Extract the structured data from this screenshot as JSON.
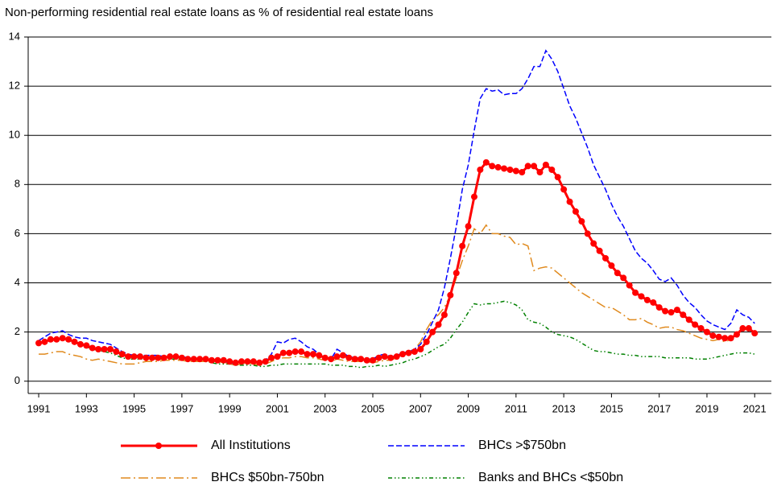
{
  "chart_data": {
    "type": "line",
    "title": "Non-performing residential real estate loans as % of residential real estate loans",
    "x": [
      1991,
      1991.25,
      1991.5,
      1991.75,
      1992,
      1992.25,
      1992.5,
      1992.75,
      1993,
      1993.25,
      1993.5,
      1993.75,
      1994,
      1994.25,
      1994.5,
      1994.75,
      1995,
      1995.25,
      1995.5,
      1995.75,
      1996,
      1996.25,
      1996.5,
      1996.75,
      1997,
      1997.25,
      1997.5,
      1997.75,
      1998,
      1998.25,
      1998.5,
      1998.75,
      1999,
      1999.25,
      1999.5,
      1999.75,
      2000,
      2000.25,
      2000.5,
      2000.75,
      2001,
      2001.25,
      2001.5,
      2001.75,
      2002,
      2002.25,
      2002.5,
      2002.75,
      2003,
      2003.25,
      2003.5,
      2003.75,
      2004,
      2004.25,
      2004.5,
      2004.75,
      2005,
      2005.25,
      2005.5,
      2005.75,
      2006,
      2006.25,
      2006.5,
      2006.75,
      2007,
      2007.25,
      2007.5,
      2007.75,
      2008,
      2008.25,
      2008.5,
      2008.75,
      2009,
      2009.25,
      2009.5,
      2009.75,
      2010,
      2010.25,
      2010.5,
      2010.75,
      2011,
      2011.25,
      2011.5,
      2011.75,
      2012,
      2012.25,
      2012.5,
      2012.75,
      2013,
      2013.25,
      2013.5,
      2013.75,
      2014,
      2014.25,
      2014.5,
      2014.75,
      2015,
      2015.25,
      2015.5,
      2015.75,
      2016,
      2016.25,
      2016.5,
      2016.75,
      2017,
      2017.25,
      2017.5,
      2017.75,
      2018,
      2018.25,
      2018.5,
      2018.75,
      2019,
      2019.25,
      2019.5,
      2019.75,
      2020,
      2020.25,
      2020.5,
      2020.75,
      2021
    ],
    "series": [
      {
        "name": "All Institutions",
        "color": "#ff0000",
        "style": "solid",
        "marker": "o",
        "values": [
          1.55,
          1.6,
          1.7,
          1.7,
          1.75,
          1.7,
          1.6,
          1.5,
          1.45,
          1.35,
          1.3,
          1.3,
          1.3,
          1.2,
          1.1,
          1.0,
          1.0,
          1.0,
          0.95,
          0.95,
          0.95,
          0.95,
          1.0,
          1.0,
          0.95,
          0.9,
          0.9,
          0.9,
          0.9,
          0.85,
          0.85,
          0.85,
          0.8,
          0.75,
          0.8,
          0.8,
          0.8,
          0.75,
          0.8,
          0.95,
          1.0,
          1.15,
          1.15,
          1.2,
          1.2,
          1.1,
          1.1,
          1.05,
          0.95,
          0.9,
          1.0,
          1.05,
          0.95,
          0.9,
          0.9,
          0.85,
          0.85,
          0.95,
          1.0,
          0.95,
          1.0,
          1.1,
          1.15,
          1.2,
          1.3,
          1.6,
          2.0,
          2.3,
          2.7,
          3.5,
          4.4,
          5.5,
          6.3,
          7.5,
          8.6,
          8.9,
          8.75,
          8.7,
          8.65,
          8.6,
          8.55,
          8.5,
          8.75,
          8.75,
          8.5,
          8.8,
          8.6,
          8.3,
          7.8,
          7.3,
          6.9,
          6.5,
          6.0,
          5.6,
          5.3,
          5.0,
          4.7,
          4.4,
          4.2,
          3.9,
          3.6,
          3.45,
          3.3,
          3.2,
          3.0,
          2.85,
          2.8,
          2.9,
          2.7,
          2.5,
          2.3,
          2.15,
          2.0,
          1.85,
          1.8,
          1.75,
          1.75,
          1.9,
          2.15,
          2.15,
          1.95
        ]
      },
      {
        "name": "BHCs >$750bn",
        "color": "#0000ff",
        "style": "dashed",
        "values": [
          1.65,
          1.8,
          1.95,
          2.0,
          2.05,
          1.9,
          1.8,
          1.75,
          1.75,
          1.65,
          1.6,
          1.55,
          1.5,
          1.35,
          1.2,
          1.1,
          1.05,
          1.05,
          1.05,
          1.05,
          1.05,
          1.0,
          1.05,
          1.0,
          1.0,
          0.95,
          0.95,
          0.9,
          0.9,
          0.85,
          0.85,
          0.8,
          0.75,
          0.7,
          0.8,
          0.8,
          0.8,
          0.75,
          0.85,
          1.1,
          1.6,
          1.55,
          1.7,
          1.75,
          1.6,
          1.4,
          1.3,
          1.1,
          0.95,
          0.9,
          1.3,
          1.15,
          1.0,
          0.95,
          0.95,
          0.9,
          0.9,
          1.05,
          1.1,
          1.0,
          1.05,
          1.15,
          1.2,
          1.3,
          1.5,
          1.9,
          2.4,
          2.9,
          3.8,
          5.0,
          6.3,
          7.8,
          8.8,
          10.2,
          11.5,
          11.9,
          11.8,
          11.85,
          11.65,
          11.7,
          11.7,
          11.9,
          12.3,
          12.8,
          12.8,
          13.45,
          13.1,
          12.6,
          11.9,
          11.2,
          10.7,
          10.1,
          9.5,
          8.8,
          8.3,
          7.8,
          7.2,
          6.7,
          6.3,
          5.8,
          5.3,
          5.0,
          4.8,
          4.5,
          4.15,
          4.05,
          4.2,
          3.9,
          3.5,
          3.2,
          3.0,
          2.7,
          2.45,
          2.3,
          2.2,
          2.1,
          2.35,
          2.9,
          2.7,
          2.6,
          2.35
        ]
      },
      {
        "name": "BHCs $50bn-750bn",
        "color": "#e08a1e",
        "style": "dashdot",
        "values": [
          1.1,
          1.1,
          1.15,
          1.2,
          1.2,
          1.1,
          1.05,
          1.0,
          0.9,
          0.85,
          0.9,
          0.85,
          0.8,
          0.75,
          0.7,
          0.7,
          0.7,
          0.75,
          0.8,
          0.8,
          0.8,
          0.85,
          0.85,
          0.85,
          0.85,
          0.8,
          0.8,
          0.8,
          0.8,
          0.8,
          0.8,
          0.75,
          0.7,
          0.65,
          0.7,
          0.75,
          0.7,
          0.65,
          0.7,
          0.8,
          0.9,
          0.95,
          0.95,
          1.0,
          1.0,
          0.95,
          0.95,
          0.9,
          0.85,
          0.8,
          0.9,
          0.85,
          0.8,
          0.8,
          0.8,
          0.8,
          0.75,
          0.8,
          0.85,
          0.85,
          0.95,
          1.1,
          1.2,
          1.3,
          1.6,
          2.1,
          2.5,
          2.7,
          3.0,
          3.5,
          4.2,
          4.9,
          5.5,
          6.2,
          6.0,
          6.35,
          6.0,
          6.0,
          5.9,
          5.85,
          5.55,
          5.6,
          5.5,
          4.5,
          4.6,
          4.65,
          4.6,
          4.4,
          4.2,
          4.0,
          3.8,
          3.6,
          3.45,
          3.3,
          3.15,
          3.0,
          3.0,
          2.85,
          2.7,
          2.5,
          2.5,
          2.55,
          2.4,
          2.3,
          2.15,
          2.2,
          2.2,
          2.1,
          2.05,
          1.95,
          1.85,
          1.75,
          1.7,
          1.65,
          1.7,
          1.6,
          1.7,
          2.0,
          2.1,
          2.1,
          2.0
        ]
      },
      {
        "name": "Banks and BHCs <$50bn",
        "color": "#008000",
        "style": "dashdotdot",
        "values": [
          1.55,
          1.6,
          1.65,
          1.7,
          1.7,
          1.65,
          1.55,
          1.45,
          1.4,
          1.3,
          1.25,
          1.2,
          1.15,
          1.05,
          0.95,
          0.9,
          0.9,
          0.9,
          0.9,
          0.9,
          0.9,
          0.9,
          0.9,
          0.9,
          0.85,
          0.85,
          0.8,
          0.8,
          0.8,
          0.75,
          0.7,
          0.7,
          0.7,
          0.65,
          0.65,
          0.65,
          0.65,
          0.6,
          0.6,
          0.65,
          0.65,
          0.7,
          0.7,
          0.7,
          0.7,
          0.7,
          0.7,
          0.7,
          0.7,
          0.65,
          0.65,
          0.65,
          0.6,
          0.6,
          0.55,
          0.6,
          0.6,
          0.65,
          0.6,
          0.65,
          0.7,
          0.75,
          0.85,
          0.9,
          1.0,
          1.1,
          1.25,
          1.4,
          1.5,
          1.75,
          2.1,
          2.4,
          2.8,
          3.15,
          3.1,
          3.15,
          3.15,
          3.2,
          3.25,
          3.2,
          3.1,
          2.9,
          2.5,
          2.4,
          2.35,
          2.2,
          2.0,
          1.9,
          1.85,
          1.8,
          1.7,
          1.55,
          1.4,
          1.25,
          1.2,
          1.2,
          1.15,
          1.1,
          1.1,
          1.05,
          1.05,
          1.0,
          1.0,
          1.0,
          1.0,
          0.95,
          0.95,
          0.95,
          0.95,
          0.95,
          0.9,
          0.9,
          0.9,
          0.95,
          1.0,
          1.05,
          1.1,
          1.15,
          1.15,
          1.15,
          1.1
        ]
      }
    ],
    "xlim": [
      1990.56,
      2021.7
    ],
    "xticks": [
      1991,
      1993,
      1995,
      1997,
      1999,
      2001,
      2003,
      2005,
      2007,
      2009,
      2011,
      2013,
      2015,
      2017,
      2019,
      2021
    ],
    "ylim": [
      -0.5,
      14
    ],
    "yticks": [
      0,
      2,
      4,
      6,
      8,
      10,
      12,
      14
    ],
    "grid": true,
    "legend": "bottom"
  }
}
